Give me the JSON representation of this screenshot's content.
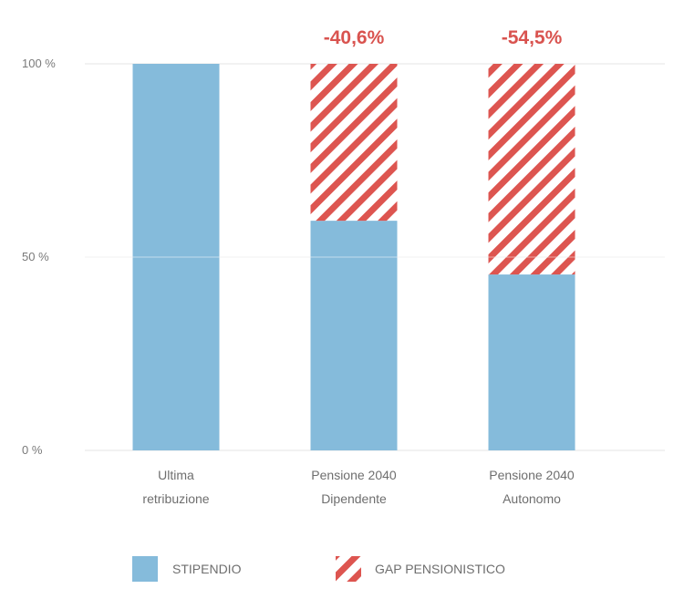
{
  "colors": {
    "stipendio": "#85bbdb",
    "gap": "#dd5550",
    "gridline": "#e4e4e4",
    "axis_text": "#7a7a7a"
  },
  "chart_data": {
    "type": "bar",
    "stacked": true,
    "categories": [
      [
        "Ultima",
        "retribuzione"
      ],
      [
        "Pensione 2040",
        "Dipendente"
      ],
      [
        "Pensione 2040",
        "Autonomo"
      ]
    ],
    "series": [
      {
        "name": "STIPENDIO",
        "values": [
          100,
          59.4,
          45.5
        ],
        "pattern": "solid"
      },
      {
        "name": "GAP PENSIONISTICO",
        "values": [
          0,
          40.6,
          54.5
        ],
        "pattern": "hatched"
      }
    ],
    "annotations": [
      "",
      "-40,6%",
      "-54,5%"
    ],
    "ylim": [
      0,
      100
    ],
    "yticks": [
      0,
      50,
      100
    ],
    "ytick_labels": [
      "0 %",
      "50 %",
      "100 %"
    ],
    "grid": true,
    "legend_position": "bottom"
  }
}
